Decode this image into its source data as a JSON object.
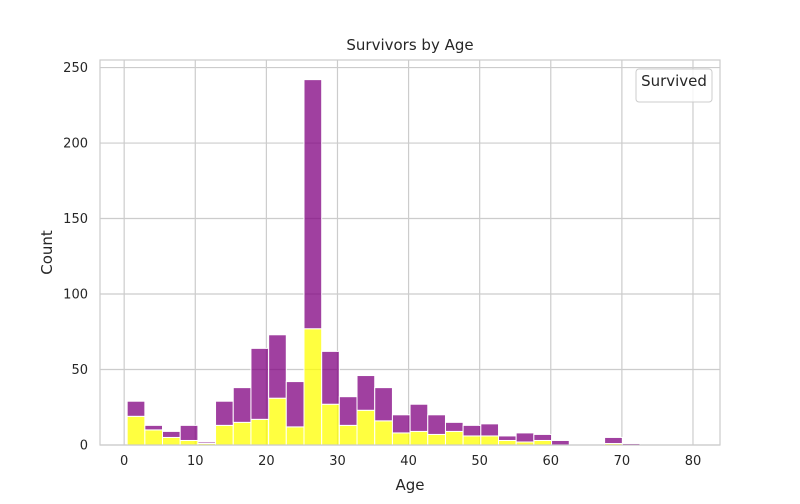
{
  "chart_data": {
    "type": "bar",
    "title": "Survivors by Age",
    "xlabel": "Age",
    "ylabel": "Count",
    "xlim": [
      -3.4,
      83.8
    ],
    "ylim": [
      0,
      255
    ],
    "x_ticks": [
      0,
      10,
      20,
      30,
      40,
      50,
      60,
      70,
      80
    ],
    "y_ticks": [
      0,
      50,
      100,
      150,
      200,
      250
    ],
    "grid": true,
    "stacked": true,
    "legend": {
      "title": "Survived",
      "placement": "top-right"
    },
    "bin_edges": [
      0.42,
      2.91,
      5.39,
      7.88,
      10.37,
      12.85,
      15.34,
      17.83,
      20.32,
      22.8,
      25.29,
      27.78,
      30.26,
      32.75,
      35.24,
      37.73,
      40.21,
      42.7,
      45.19,
      47.67,
      50.16,
      52.65,
      55.13,
      57.62,
      60.11,
      62.6,
      65.08,
      67.57,
      70.06,
      72.54,
      75.03,
      77.52,
      80.0
    ],
    "series": [
      {
        "color": "#ffff00",
        "values": [
          19,
          10,
          5,
          3,
          1,
          13,
          15,
          17,
          31,
          12,
          77,
          27,
          13,
          23,
          16,
          8,
          9,
          7,
          9,
          6,
          6,
          3,
          2,
          3,
          0,
          0,
          0,
          1,
          0,
          0,
          0,
          0
        ]
      },
      {
        "color": "#800080",
        "values": [
          10,
          3,
          4,
          10,
          1,
          16,
          23,
          47,
          42,
          30,
          165,
          35,
          19,
          23,
          22,
          12,
          18,
          13,
          6,
          7,
          8,
          3,
          6,
          4,
          3,
          0,
          0,
          4,
          1,
          0,
          0,
          0
        ]
      }
    ]
  }
}
